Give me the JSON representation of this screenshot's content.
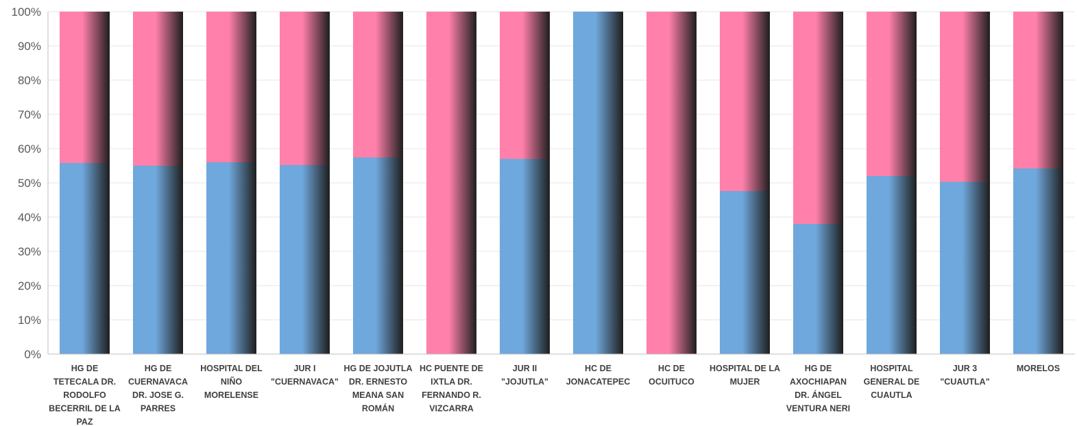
{
  "chart_data": {
    "type": "bar",
    "stacked": true,
    "percent_stacked": true,
    "title": "",
    "xlabel": "",
    "ylabel": "",
    "ylim": [
      0,
      100
    ],
    "y_tick_labels": [
      "0%",
      "10%",
      "20%",
      "30%",
      "40%",
      "50%",
      "60%",
      "70%",
      "80%",
      "90%",
      "100%"
    ],
    "grid": true,
    "legend": "none",
    "categories": [
      "HG DE TETECALA DR. RODOLFO BECERRIL DE LA PAZ",
      "HG DE CUERNAVACA DR. JOSE G. PARRES",
      "HOSPITAL DEL NIÑO MORELENSE",
      "JUR I \"CUERNAVACA\"",
      "HG DE JOJUTLA DR. ERNESTO MEANA SAN ROMÁN",
      "HC PUENTE DE IXTLA DR. FERNANDO R. VIZCARRA",
      "JUR II \"JOJUTLA\"",
      "HC DE JONACATEPEC",
      "HC DE OCUITUCO",
      "HOSPITAL DE LA MUJER",
      "HG DE AXOCHIAPAN DR. ÁNGEL VENTURA NERI",
      "HOSPITAL GENERAL DE CUAUTLA",
      "JUR 3 \"CUAUTLA\"",
      "MORELOS"
    ],
    "category_lines": [
      [
        "HG DE",
        "TETECALA DR.",
        "RODOLFO",
        "BECERRIL DE LA",
        "PAZ"
      ],
      [
        "HG DE",
        "CUERNAVACA",
        "DR. JOSE G.",
        "PARRES"
      ],
      [
        "HOSPITAL DEL",
        "NIÑO",
        "MORELENSE"
      ],
      [
        "JUR I",
        "\"CUERNAVACA\""
      ],
      [
        "HG DE JOJUTLA",
        "DR. ERNESTO",
        "MEANA SAN",
        "ROMÁN"
      ],
      [
        "HC PUENTE DE",
        "IXTLA DR.",
        "FERNANDO R.",
        "VIZCARRA"
      ],
      [
        "JUR II",
        "\"JOJUTLA\""
      ],
      [
        "HC DE",
        "JONACATEPEC"
      ],
      [
        "HC DE",
        "OCUITUCO"
      ],
      [
        "HOSPITAL DE LA",
        "MUJER"
      ],
      [
        "HG DE",
        "AXOCHIAPAN",
        "DR. ÁNGEL",
        "VENTURA NERI"
      ],
      [
        "HOSPITAL",
        "GENERAL DE",
        "CUAUTLA"
      ],
      [
        "JUR 3",
        "\"CUAUTLA\""
      ],
      [
        "MORELOS"
      ]
    ],
    "series": [
      {
        "color": "#6FA8DC",
        "values": [
          55.8,
          55.0,
          56.0,
          55.2,
          57.4,
          0,
          57.0,
          100,
          0,
          47.6,
          38.0,
          52.0,
          50.3,
          54.2
        ]
      },
      {
        "color": "#FF80AB",
        "values": [
          44.2,
          45.0,
          44.0,
          44.8,
          42.6,
          100,
          43.0,
          0,
          100,
          52.4,
          62.0,
          48.0,
          49.7,
          45.8
        ]
      }
    ]
  }
}
